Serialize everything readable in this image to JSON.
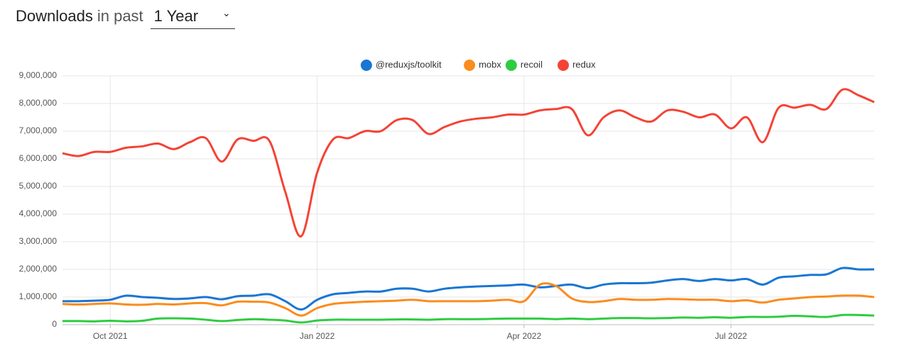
{
  "header": {
    "title": "Downloads",
    "subtitle": "in past",
    "period": "1 Year"
  },
  "chart_data": {
    "type": "line",
    "categories": [
      null,
      null,
      null,
      "Oct 2021",
      null,
      null,
      null,
      null,
      null,
      null,
      null,
      null,
      null,
      null,
      null,
      null,
      "Jan 2022",
      null,
      null,
      null,
      null,
      null,
      null,
      null,
      null,
      null,
      null,
      null,
      null,
      "Apr 2022",
      null,
      null,
      null,
      null,
      null,
      null,
      null,
      null,
      null,
      null,
      null,
      null,
      "Jul 2022",
      null,
      null,
      null,
      null,
      null,
      null,
      null,
      null,
      null
    ],
    "series": [
      {
        "name": "@reduxjs/toolkit",
        "color": "#1976d2",
        "values": [
          850000,
          850000,
          870000,
          900000,
          1050000,
          1000000,
          970000,
          930000,
          950000,
          1000000,
          920000,
          1030000,
          1050000,
          1100000,
          850000,
          550000,
          900000,
          1100000,
          1150000,
          1200000,
          1200000,
          1300000,
          1300000,
          1200000,
          1300000,
          1350000,
          1380000,
          1400000,
          1420000,
          1450000,
          1350000,
          1400000,
          1450000,
          1320000,
          1450000,
          1500000,
          1500000,
          1520000,
          1600000,
          1650000,
          1580000,
          1650000,
          1600000,
          1650000,
          1450000,
          1700000,
          1750000,
          1800000,
          1820000,
          2050000,
          2000000,
          2000000
        ]
      },
      {
        "name": "mobx",
        "color": "#fb8c1e",
        "values": [
          750000,
          730000,
          750000,
          770000,
          730000,
          720000,
          750000,
          730000,
          770000,
          780000,
          700000,
          830000,
          830000,
          800000,
          600000,
          330000,
          600000,
          750000,
          800000,
          830000,
          850000,
          870000,
          900000,
          850000,
          850000,
          850000,
          850000,
          870000,
          900000,
          850000,
          1450000,
          1400000,
          950000,
          820000,
          850000,
          930000,
          900000,
          900000,
          930000,
          920000,
          900000,
          900000,
          850000,
          880000,
          800000,
          900000,
          950000,
          1000000,
          1020000,
          1050000,
          1050000,
          1000000
        ]
      },
      {
        "name": "recoil",
        "color": "#2ecc40",
        "values": [
          130000,
          130000,
          120000,
          140000,
          120000,
          140000,
          220000,
          230000,
          220000,
          180000,
          130000,
          170000,
          200000,
          180000,
          150000,
          80000,
          150000,
          180000,
          180000,
          180000,
          180000,
          190000,
          190000,
          180000,
          200000,
          200000,
          200000,
          210000,
          220000,
          220000,
          220000,
          200000,
          220000,
          200000,
          220000,
          240000,
          240000,
          230000,
          240000,
          260000,
          250000,
          270000,
          250000,
          280000,
          280000,
          290000,
          320000,
          300000,
          280000,
          350000,
          350000,
          330000
        ]
      },
      {
        "name": "redux",
        "color": "#f44336",
        "values": [
          6200000,
          6100000,
          6250000,
          6250000,
          6400000,
          6450000,
          6550000,
          6350000,
          6600000,
          6750000,
          5900000,
          6700000,
          6650000,
          6650000,
          4800000,
          3200000,
          5500000,
          6700000,
          6750000,
          7000000,
          7000000,
          7400000,
          7400000,
          6900000,
          7150000,
          7350000,
          7450000,
          7500000,
          7600000,
          7600000,
          7750000,
          7800000,
          7800000,
          6850000,
          7500000,
          7750000,
          7500000,
          7350000,
          7750000,
          7700000,
          7500000,
          7600000,
          7100000,
          7500000,
          6600000,
          7850000,
          7850000,
          7950000,
          7800000,
          8500000,
          8300000,
          8050000
        ]
      }
    ],
    "ylim": [
      0,
      9000000
    ],
    "yticks": [
      0,
      {
        "value": 1000000,
        "label": "1,000,000"
      },
      {
        "value": 2000000,
        "label": "2,000,000"
      },
      {
        "value": 3000000,
        "label": "3,000,000"
      },
      {
        "value": 4000000,
        "label": "4,000,000"
      },
      {
        "value": 5000000,
        "label": "5,000,000"
      },
      {
        "value": 6000000,
        "label": "6,000,000"
      },
      {
        "value": 7000000,
        "label": "7,000,000"
      },
      {
        "value": 8000000,
        "label": "8,000,000"
      },
      {
        "value": 9000000,
        "label": "9,000,000"
      }
    ],
    "grid": true,
    "legend": "top"
  }
}
